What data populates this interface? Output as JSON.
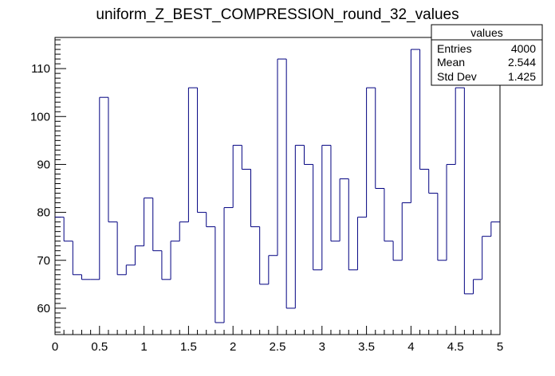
{
  "chart_data": {
    "type": "histogram",
    "title": "uniform_Z_BEST_COMPRESSION_round_32_values",
    "xlabel": "",
    "ylabel": "",
    "xlim": [
      0,
      5
    ],
    "ylim": [
      54.5,
      116.5
    ],
    "bin_width": 0.1,
    "x_ticks": [
      0,
      0.5,
      1,
      1.5,
      2,
      2.5,
      3,
      3.5,
      4,
      4.5,
      5
    ],
    "x_tick_labels": [
      "0",
      "0.5",
      "1",
      "1.5",
      "2",
      "2.5",
      "3",
      "3.5",
      "4",
      "4.5",
      "5"
    ],
    "y_ticks": [
      60,
      70,
      80,
      90,
      100,
      110
    ],
    "y_tick_labels": [
      "60",
      "70",
      "80",
      "90",
      "100",
      "110"
    ],
    "grid": false,
    "line_color": "#000080",
    "values": [
      79,
      74,
      67,
      66,
      66,
      104,
      78,
      67,
      69,
      73,
      83,
      72,
      66,
      74,
      78,
      106,
      80,
      77,
      57,
      81,
      94,
      89,
      77,
      65,
      71,
      112,
      60,
      94,
      90,
      68,
      94,
      74,
      87,
      68,
      79,
      106,
      85,
      74,
      70,
      82,
      114,
      89,
      84,
      70,
      90,
      106,
      63,
      66,
      75,
      78
    ],
    "stats_box": {
      "title": "values",
      "rows": [
        {
          "label": "Entries",
          "value": "4000"
        },
        {
          "label": "Mean",
          "value": "2.544"
        },
        {
          "label": "Std Dev",
          "value": "1.425"
        }
      ]
    }
  }
}
